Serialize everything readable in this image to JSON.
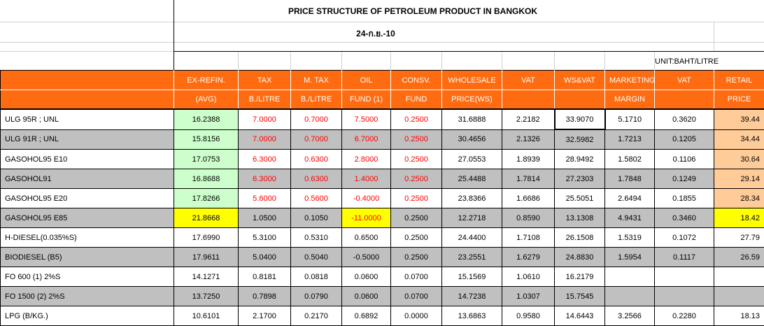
{
  "title": "PRICE STRUCTURE OF PETROLEUM PRODUCT IN BANGKOK",
  "date": "24-ก.ย.-10",
  "unit": "UNIT:BAHT/LITRE",
  "headers_top": [
    "",
    "EX-REFIN.",
    "TAX",
    "M. TAX",
    "OIL",
    "CONSV.",
    "WHOLESALE",
    "VAT",
    "WS&VAT",
    "MARKETING",
    "VAT",
    "RETAIL"
  ],
  "headers_bottom": [
    "",
    "(AVG)",
    "B./LITRE",
    "B./LITRE",
    "FUND (1)",
    "FUND",
    "PRICE(WS)",
    "",
    "",
    "MARGIN",
    "",
    "PRICE"
  ],
  "rows": [
    {
      "name": "ULG 95R ; UNL",
      "values": [
        "16.2388",
        "7.0000",
        "0.7000",
        "7.5000",
        "0.2500",
        "31.6888",
        "2.2182",
        "33.9070",
        "5.1710",
        "0.3620",
        "39.44"
      ]
    },
    {
      "name": "ULG 91R ; UNL",
      "values": [
        "15.8156",
        "7.0000",
        "0.7000",
        "6.7000",
        "0.2500",
        "30.4656",
        "2.1326",
        "32.5982",
        "1.7213",
        "0.1205",
        "34.44"
      ]
    },
    {
      "name": "GASOHOL95 E10",
      "values": [
        "17.0753",
        "6.3000",
        "0.6300",
        "2.8000",
        "0.2500",
        "27.0553",
        "1.8939",
        "28.9492",
        "1.5802",
        "0.1106",
        "30.64"
      ]
    },
    {
      "name": "GASOHOL91",
      "values": [
        "16.8688",
        "6.3000",
        "0.6300",
        "1.4000",
        "0.2500",
        "25.4488",
        "1.7814",
        "27.2303",
        "1.7848",
        "0.1249",
        "29.14"
      ]
    },
    {
      "name": "GASOHOL95 E20",
      "values": [
        "17.8266",
        "5.6000",
        "0.5600",
        "-0.4000",
        "0.2500",
        "23.8366",
        "1.6686",
        "25.5051",
        "2.6494",
        "0.1855",
        "28.34"
      ]
    },
    {
      "name": "GASOHOL95 E85",
      "values": [
        "21.8668",
        "1.0500",
        "0.1050",
        "-11.0000",
        "0.2500",
        "12.2718",
        "0.8590",
        "13.1308",
        "4.9431",
        "0.3460",
        "18.42"
      ]
    },
    {
      "name": "H-DIESEL(0.035%S)",
      "values": [
        "17.6990",
        "5.3100",
        "0.5310",
        "0.6500",
        "0.2500",
        "24.4400",
        "1.7108",
        "26.1508",
        "1.5319",
        "0.1072",
        "27.79"
      ]
    },
    {
      "name": "BIODIESEL (B5)",
      "values": [
        "17.9611",
        "5.0400",
        "0.5040",
        "-0.5000",
        "0.2500",
        "23.2551",
        "1.6279",
        "24.8830",
        "1.5954",
        "0.1117",
        "26.59"
      ]
    },
    {
      "name": "FO 600 (1) 2%S",
      "values": [
        "14.1271",
        "0.8181",
        "0.0818",
        "0.0600",
        "0.0700",
        "15.1569",
        "1.0610",
        "16.2179",
        "",
        "",
        ""
      ]
    },
    {
      "name": "FO 1500 (2) 2%S",
      "values": [
        "13.7250",
        "0.7898",
        "0.0790",
        "0.0600",
        "0.0700",
        "14.7238",
        "1.0307",
        "15.7545",
        "",
        "",
        ""
      ]
    },
    {
      "name": "LPG (B/KG.)",
      "values": [
        "10.6101",
        "2.1700",
        "0.2170",
        "0.6892",
        "0.0000",
        "13.6863",
        "0.9580",
        "14.6443",
        "3.2566",
        "0.2280",
        "18.13"
      ]
    }
  ],
  "colors": {
    "header": "#ff6b10",
    "green": "#ccffcc",
    "peach": "#ffcc99",
    "yellow": "#ffff00",
    "red": "#ff0000",
    "shade": "#c0c0c0"
  }
}
